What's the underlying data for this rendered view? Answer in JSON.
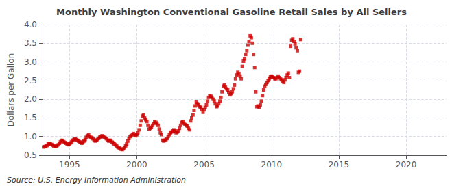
{
  "chart_data": {
    "type": "scatter",
    "title": "Monthly Washington Conventional Gasoline Retail Sales by All Sellers",
    "ylabel": "Dollars per Gallon",
    "source": "Source: U.S. Energy Information Administration",
    "color": "#cc0000",
    "marker": "square",
    "grid": true,
    "xlim": [
      1993,
      2023
    ],
    "ylim": [
      0.5,
      4.0
    ],
    "xticks": [
      1995,
      2000,
      2005,
      2010,
      2015,
      2020
    ],
    "yticks": [
      0.5,
      {
        "value": 1,
        "label": "1.0"
      },
      1.5,
      {
        "value": 2,
        "label": "2.0"
      },
      2.5,
      {
        "value": 3,
        "label": "3.0"
      },
      3.5,
      {
        "value": 4,
        "label": "4.0"
      }
    ],
    "x": [
      1993.08,
      1993.17,
      1993.25,
      1993.33,
      1993.42,
      1993.5,
      1993.58,
      1993.67,
      1993.75,
      1993.83,
      1993.92,
      1994.0,
      1994.08,
      1994.17,
      1994.25,
      1994.33,
      1994.42,
      1994.5,
      1994.58,
      1994.67,
      1994.75,
      1994.83,
      1994.92,
      1995.0,
      1995.08,
      1995.17,
      1995.25,
      1995.33,
      1995.42,
      1995.5,
      1995.58,
      1995.67,
      1995.75,
      1995.83,
      1995.92,
      1996.0,
      1996.08,
      1996.17,
      1996.25,
      1996.33,
      1996.42,
      1996.5,
      1996.58,
      1996.67,
      1996.75,
      1996.83,
      1996.92,
      1997.0,
      1997.08,
      1997.17,
      1997.25,
      1997.33,
      1997.42,
      1997.5,
      1997.58,
      1997.67,
      1997.75,
      1997.83,
      1997.92,
      1998.0,
      1998.08,
      1998.17,
      1998.25,
      1998.33,
      1998.42,
      1998.5,
      1998.58,
      1998.67,
      1998.75,
      1998.83,
      1998.92,
      1999.0,
      1999.08,
      1999.17,
      1999.25,
      1999.33,
      1999.42,
      1999.5,
      1999.58,
      1999.67,
      1999.75,
      1999.83,
      1999.92,
      2000.0,
      2000.08,
      2000.17,
      2000.25,
      2000.33,
      2000.42,
      2000.5,
      2000.58,
      2000.67,
      2000.75,
      2000.83,
      2000.92,
      2001.0,
      2001.08,
      2001.17,
      2001.25,
      2001.33,
      2001.42,
      2001.5,
      2001.58,
      2001.67,
      2001.75,
      2001.83,
      2001.92,
      2002.0,
      2002.08,
      2002.17,
      2002.25,
      2002.33,
      2002.42,
      2002.5,
      2002.58,
      2002.67,
      2002.75,
      2002.83,
      2002.92,
      2003.0,
      2003.08,
      2003.17,
      2003.25,
      2003.33,
      2003.42,
      2003.5,
      2003.58,
      2003.67,
      2003.75,
      2003.83,
      2003.92,
      2004.0,
      2004.08,
      2004.17,
      2004.25,
      2004.33,
      2004.42,
      2004.5,
      2004.58,
      2004.67,
      2004.75,
      2004.83,
      2004.92,
      2005.0,
      2005.08,
      2005.17,
      2005.25,
      2005.33,
      2005.42,
      2005.5,
      2005.58,
      2005.67,
      2005.75,
      2005.83,
      2005.92,
      2006.0,
      2006.08,
      2006.17,
      2006.25,
      2006.33,
      2006.42,
      2006.5,
      2006.58,
      2006.67,
      2006.75,
      2006.83,
      2006.92,
      2007.0,
      2007.08,
      2007.17,
      2007.25,
      2007.33,
      2007.42,
      2007.5,
      2007.58,
      2007.67,
      2007.75,
      2007.83,
      2007.92,
      2008.0,
      2008.08,
      2008.17,
      2008.25,
      2008.33,
      2008.42,
      2008.5,
      2008.58,
      2008.67,
      2008.75,
      2008.83,
      2008.92,
      2009.0,
      2009.08,
      2009.17,
      2009.25,
      2009.33,
      2009.42,
      2009.5,
      2009.58,
      2009.67,
      2009.75,
      2009.83,
      2009.92,
      2010.0,
      2010.08,
      2010.17,
      2010.25,
      2010.33,
      2010.42,
      2010.5,
      2010.58,
      2010.67,
      2010.75,
      2010.83,
      2010.92,
      2011.0,
      2011.08,
      2011.17,
      2011.25,
      2011.33,
      2011.42,
      2011.5,
      2011.58,
      2011.67,
      2011.75,
      2011.83,
      2011.92,
      2012.0,
      2012.08,
      2012.17
    ],
    "values": [
      0.72,
      0.73,
      0.74,
      0.76,
      0.8,
      0.82,
      0.8,
      0.79,
      0.77,
      0.75,
      0.73,
      0.74,
      0.76,
      0.78,
      0.82,
      0.86,
      0.9,
      0.88,
      0.86,
      0.84,
      0.82,
      0.8,
      0.78,
      0.8,
      0.83,
      0.86,
      0.9,
      0.92,
      0.94,
      0.92,
      0.9,
      0.88,
      0.86,
      0.84,
      0.82,
      0.85,
      0.88,
      0.92,
      0.98,
      1.02,
      1.05,
      1.0,
      0.98,
      0.96,
      0.94,
      0.9,
      0.88,
      0.9,
      0.92,
      0.95,
      0.98,
      1.0,
      1.02,
      1.0,
      0.98,
      0.96,
      0.94,
      0.9,
      0.88,
      0.9,
      0.88,
      0.85,
      0.83,
      0.8,
      0.78,
      0.75,
      0.72,
      0.7,
      0.68,
      0.66,
      0.65,
      0.67,
      0.7,
      0.75,
      0.8,
      0.88,
      0.95,
      1.0,
      1.02,
      1.05,
      1.08,
      1.05,
      1.02,
      1.05,
      1.1,
      1.18,
      1.3,
      1.42,
      1.55,
      1.58,
      1.5,
      1.45,
      1.4,
      1.3,
      1.2,
      1.22,
      1.25,
      1.3,
      1.35,
      1.4,
      1.38,
      1.35,
      1.3,
      1.2,
      1.1,
      1.05,
      0.9,
      0.88,
      0.9,
      0.92,
      0.95,
      1.0,
      1.05,
      1.1,
      1.12,
      1.15,
      1.18,
      1.15,
      1.1,
      1.12,
      1.15,
      1.22,
      1.3,
      1.38,
      1.4,
      1.35,
      1.32,
      1.3,
      1.28,
      1.22,
      1.18,
      1.42,
      1.5,
      1.58,
      1.7,
      1.82,
      1.92,
      1.88,
      1.85,
      1.8,
      1.78,
      1.72,
      1.65,
      1.72,
      1.78,
      1.85,
      1.95,
      2.05,
      2.1,
      2.08,
      2.05,
      2.0,
      1.95,
      1.88,
      1.8,
      1.82,
      1.88,
      1.95,
      2.05,
      2.2,
      2.35,
      2.38,
      2.32,
      2.28,
      2.25,
      2.18,
      2.12,
      2.15,
      2.2,
      2.28,
      2.38,
      2.55,
      2.65,
      2.72,
      2.68,
      2.62,
      2.55,
      2.88,
      3.02,
      3.08,
      3.2,
      3.3,
      3.45,
      3.55,
      3.7,
      3.65,
      3.5,
      3.2,
      2.85,
      2.2,
      1.8,
      1.82,
      1.78,
      1.85,
      1.95,
      2.1,
      2.25,
      2.35,
      2.4,
      2.45,
      2.5,
      2.55,
      2.6,
      2.62,
      2.6,
      2.58,
      2.55,
      2.55,
      2.58,
      2.62,
      2.58,
      2.55,
      2.52,
      2.48,
      2.45,
      2.52,
      2.58,
      2.65,
      2.7,
      2.58,
      3.42,
      3.58,
      3.62,
      3.55,
      3.48,
      3.38,
      3.3,
      2.72,
      2.75,
      3.6
    ]
  }
}
